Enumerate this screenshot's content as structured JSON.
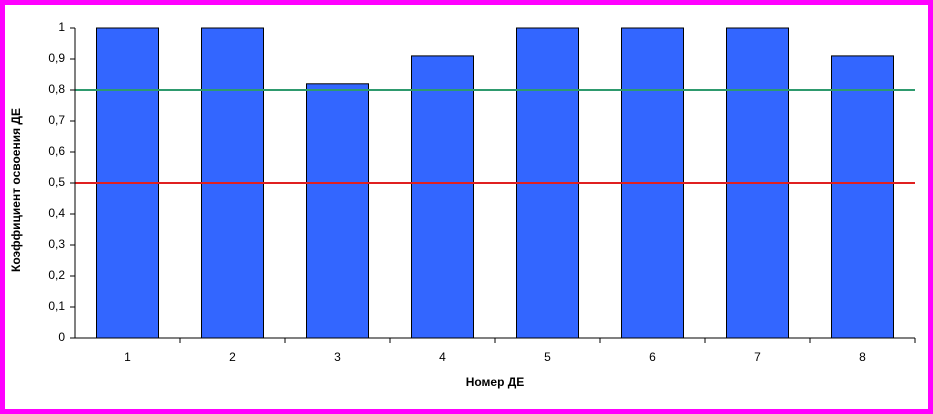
{
  "chart_data": {
    "type": "bar",
    "x_label": "Номер ДЕ",
    "y_label": "Коэффициент освоения ДЕ",
    "categories": [
      "1",
      "2",
      "3",
      "4",
      "5",
      "6",
      "7",
      "8"
    ],
    "values": [
      1,
      1,
      0.82,
      0.91,
      1,
      1,
      1,
      0.91
    ],
    "color": "#3366ff",
    "ylim": [
      0,
      1
    ],
    "yticks": [
      0,
      {
        "value": 0.1,
        "label": "0,1"
      },
      {
        "value": 0.2,
        "label": "0,2"
      },
      {
        "value": 0.3,
        "label": "0,3"
      },
      {
        "value": 0.4,
        "label": "0,4"
      },
      {
        "value": 0.5,
        "label": "0,5"
      },
      {
        "value": 0.6,
        "label": "0,6"
      },
      {
        "value": 0.7,
        "label": "0,7"
      },
      {
        "value": 0.8,
        "label": "0,8"
      },
      {
        "value": 0.9,
        "label": "0,9"
      },
      1
    ],
    "reference_lines": [
      {
        "value": 0.8,
        "color": "#2e9a6e"
      },
      {
        "value": 0.5,
        "color": "#e02020"
      }
    ]
  }
}
